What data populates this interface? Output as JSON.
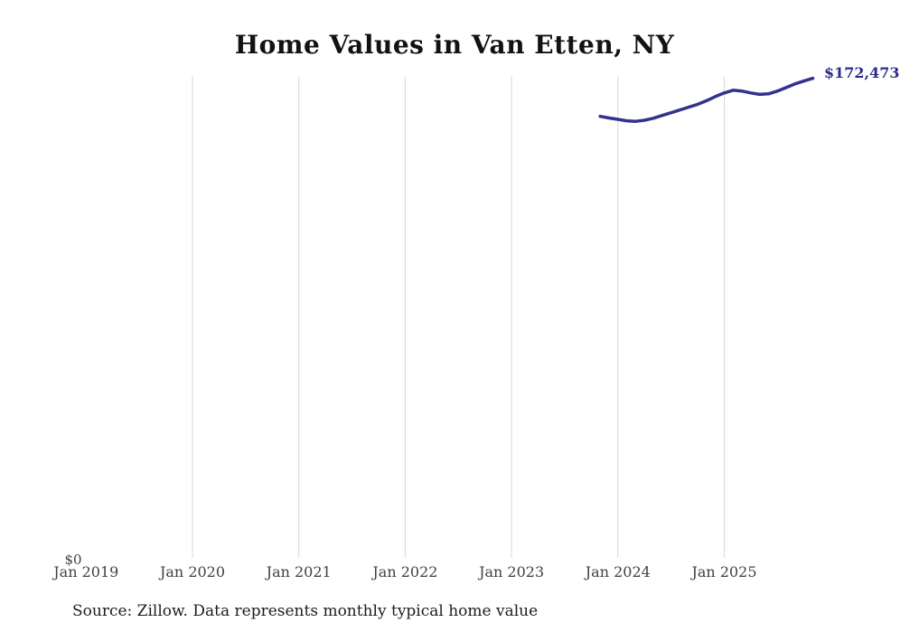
{
  "title": "Home Values in Van Etten, NY",
  "source_note": "Source: Zillow. Data represents monthly typical home value",
  "colors": {
    "line": "#35318f",
    "value_label": "#2e2b8a",
    "gridline": "#d7d7d7",
    "tick_text": "#414141",
    "title_text": "#121212",
    "source_text": "#1c1c1c",
    "background": "#ffffff"
  },
  "chart_data": {
    "type": "line",
    "title": "Home Values in Van Etten, NY",
    "xlabel": "",
    "ylabel": "",
    "ylim": [
      0,
      173000
    ],
    "y_zero_label": "$0",
    "last_value_label": "$172,473",
    "grid": "vertical-only",
    "legend": "none",
    "x_ticks": [
      {
        "label": "Jan 2019",
        "gridline": false
      },
      {
        "label": "Jan 2020",
        "gridline": true
      },
      {
        "label": "Jan 2021",
        "gridline": true
      },
      {
        "label": "Jan 2022",
        "gridline": true
      },
      {
        "label": "Jan 2023",
        "gridline": true
      },
      {
        "label": "Jan 2024",
        "gridline": true
      },
      {
        "label": "Jan 2025",
        "gridline": true
      }
    ],
    "series": [
      {
        "name": "Monthly typical home value",
        "points": [
          {
            "date": "2023-11",
            "value": 158800
          },
          {
            "date": "2023-12",
            "value": 158200
          },
          {
            "date": "2024-01",
            "value": 157700
          },
          {
            "date": "2024-02",
            "value": 157200
          },
          {
            "date": "2024-03",
            "value": 157000
          },
          {
            "date": "2024-04",
            "value": 157400
          },
          {
            "date": "2024-05",
            "value": 158100
          },
          {
            "date": "2024-06",
            "value": 159100
          },
          {
            "date": "2024-07",
            "value": 160100
          },
          {
            "date": "2024-08",
            "value": 161100
          },
          {
            "date": "2024-09",
            "value": 162100
          },
          {
            "date": "2024-10",
            "value": 163100
          },
          {
            "date": "2024-11",
            "value": 164400
          },
          {
            "date": "2024-12",
            "value": 165900
          },
          {
            "date": "2025-01",
            "value": 167200
          },
          {
            "date": "2025-02",
            "value": 168200
          },
          {
            "date": "2025-03",
            "value": 167900
          },
          {
            "date": "2025-04",
            "value": 167200
          },
          {
            "date": "2025-05",
            "value": 166700
          },
          {
            "date": "2025-06",
            "value": 166900
          },
          {
            "date": "2025-07",
            "value": 167900
          },
          {
            "date": "2025-08",
            "value": 169200
          },
          {
            "date": "2025-09",
            "value": 170500
          },
          {
            "date": "2025-10",
            "value": 171500
          },
          {
            "date": "2025-11",
            "value": 172473
          }
        ]
      }
    ]
  }
}
